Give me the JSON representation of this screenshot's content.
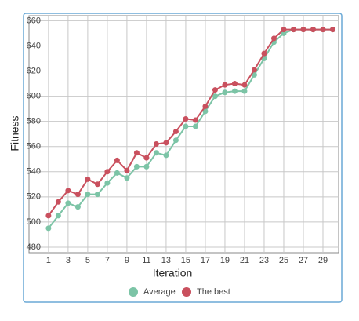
{
  "chart_data": {
    "type": "line",
    "xlabel": "Iteration",
    "ylabel": "Fitness",
    "x": [
      1,
      2,
      3,
      4,
      5,
      6,
      7,
      8,
      9,
      10,
      11,
      12,
      13,
      14,
      15,
      16,
      17,
      18,
      19,
      20,
      21,
      22,
      23,
      24,
      25,
      26,
      27,
      28,
      29,
      30
    ],
    "series": [
      {
        "name": "Average",
        "color": "#7cc4a6",
        "values": [
          495,
          505,
          515,
          512,
          522,
          522,
          531,
          539,
          535,
          544,
          544,
          555,
          553,
          565,
          576,
          576,
          588,
          600,
          603,
          604,
          604,
          617,
          630,
          643,
          650,
          653,
          653,
          653,
          653,
          653
        ]
      },
      {
        "name": "The best",
        "color": "#c9505e",
        "values": [
          505,
          516,
          525,
          522,
          534,
          530,
          540,
          549,
          541,
          555,
          551,
          562,
          563,
          572,
          582,
          581,
          592,
          605,
          609,
          610,
          609,
          621,
          634,
          646,
          653,
          653,
          653,
          653,
          653,
          653
        ]
      }
    ],
    "xlim": [
      0.45,
      30.6
    ],
    "ylim": [
      475.6,
      664
    ],
    "xticks": [
      1,
      3,
      5,
      7,
      9,
      11,
      13,
      15,
      17,
      19,
      21,
      23,
      25,
      27,
      29
    ],
    "yticks": [
      480,
      500,
      520,
      540,
      560,
      580,
      600,
      620,
      640,
      660
    ],
    "grid": true,
    "legend": "bottom"
  }
}
